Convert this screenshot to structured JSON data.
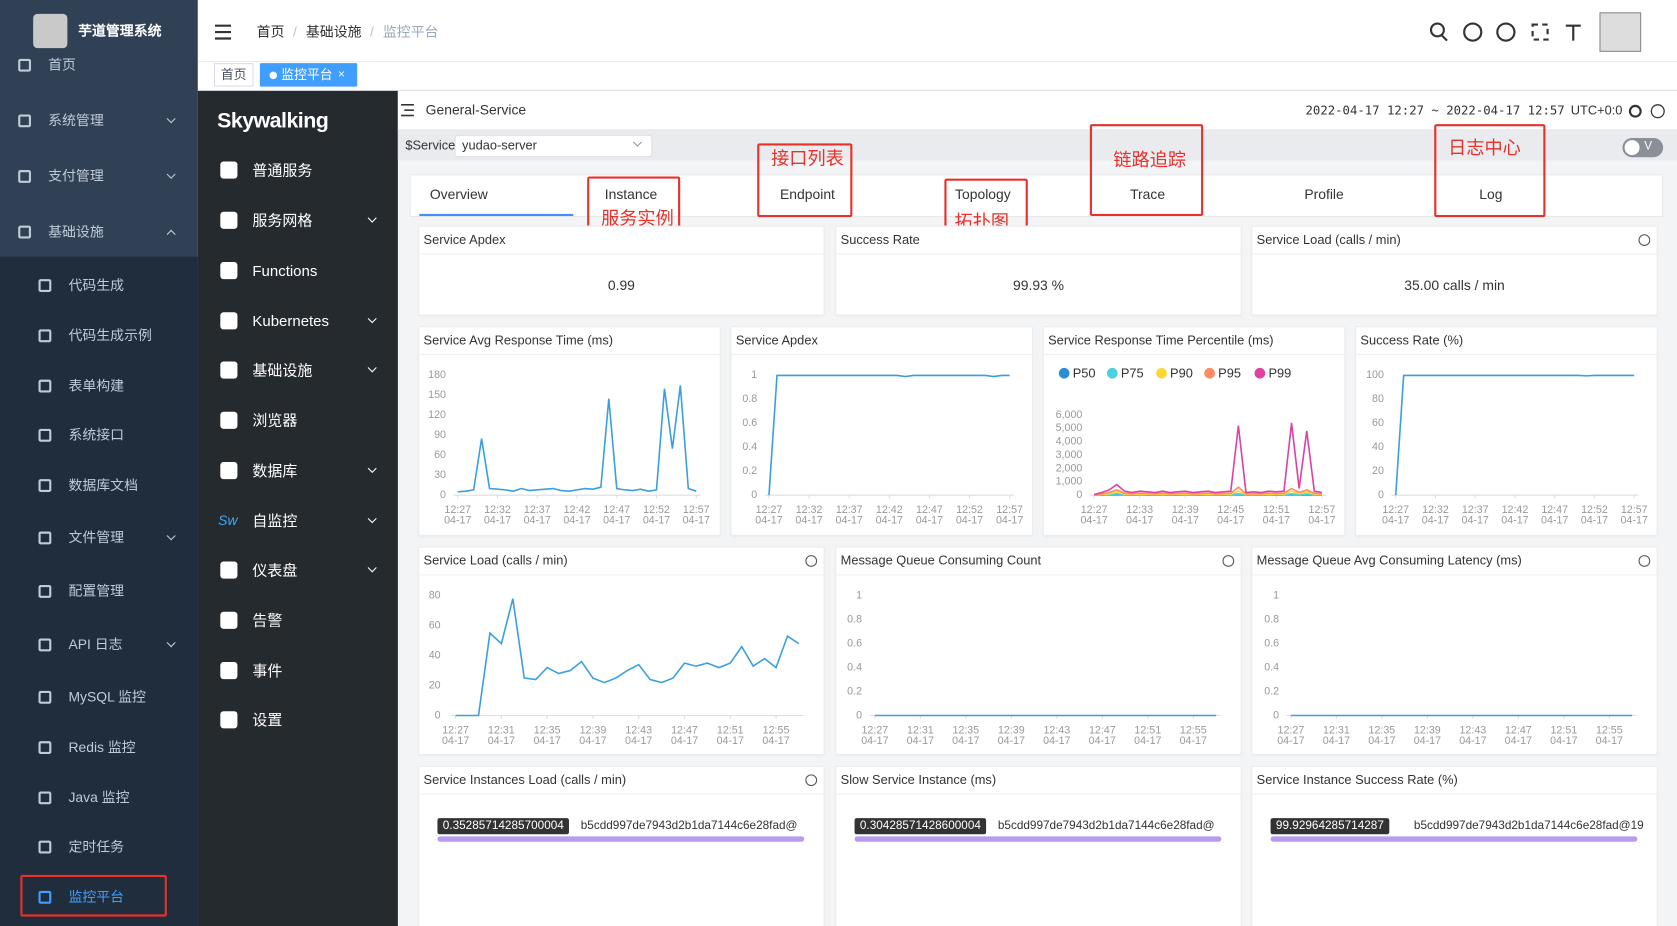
{
  "sidebar": {
    "brand": "芋道管理系统",
    "items": [
      "首页",
      "系统管理",
      "支付管理",
      "基础设施"
    ],
    "subitems": [
      "代码生成",
      "代码生成示例",
      "表单构建",
      "系统接口",
      "数据库文档",
      "文件管理",
      "配置管理",
      "API 日志",
      "MySQL 监控",
      "Redis 监控",
      "Java 监控",
      "定时任务",
      "监控平台"
    ]
  },
  "header": {
    "breadcrumb": [
      "首页",
      "基础设施",
      "监控平台"
    ],
    "separator": "/",
    "tags": [
      "首页",
      "监控平台"
    ],
    "tag_close": "×"
  },
  "skywalking": {
    "logo": "Skywalking",
    "sw_icon": "Sw",
    "menu": [
      "普通服务",
      "服务网格",
      "Functions",
      "Kubernetes",
      "基础设施",
      "浏览器",
      "数据库",
      "自监控",
      "仪表盘",
      "告警",
      "事件",
      "设置"
    ]
  },
  "dashboard": {
    "title": "General-Service",
    "time_range": "2022-04-17 12:27 ~ 2022-04-17 12:57",
    "timezone": "UTC+0:0",
    "service_label": "$Service",
    "service": "yudao-server",
    "toggle": "V",
    "tabs": [
      "Overview",
      "Instance",
      "Endpoint",
      "Topology",
      "Trace",
      "Profile",
      "Log"
    ],
    "annotations": [
      "服务实例",
      "接口列表",
      "拓扑图",
      "链路追踪",
      "日志中心"
    ],
    "cards": [
      {
        "title": "Service Apdex",
        "value": 0.99
      },
      {
        "title": "Success Rate",
        "value": 99.93,
        "value_label": "99.93 %"
      },
      {
        "title": "Service Load (calls / min)",
        "value": 35,
        "value_label": "35.00 calls / min"
      }
    ],
    "lists": [
      {
        "title": "Service Instances Load (calls / min)",
        "items": [
          {
            "value": 0.35285714285700004,
            "value_label": "0.35285714285700004",
            "name": "b5cdd997de7943d2b1da7144c6e28fad@"
          }
        ]
      },
      {
        "title": "Slow Service Instance (ms)",
        "items": [
          {
            "value": 0.30428571428600004,
            "value_label": "0.30428571428600004",
            "name": "b5cdd997de7943d2b1da7144c6e28fad@"
          }
        ]
      },
      {
        "title": "Service Instance Success Rate (%)",
        "items": [
          {
            "value": 99.92964285714287,
            "value_label": "99.92964285714287",
            "name": "b5cdd997de7943d2b1da7144c6e28fad@19"
          }
        ]
      }
    ]
  },
  "chart_data": [
    {
      "type": "line",
      "title": "Service Avg Response Time (ms)",
      "color": "#3a9fe0",
      "xlim": [
        0,
        30
      ],
      "ylim": [
        0,
        180
      ],
      "yticks": [
        0,
        30,
        60,
        90,
        120,
        150,
        180
      ],
      "xticks": [
        {
          "value": 0,
          "label": "12:27",
          "date": "04-17"
        },
        {
          "value": 5,
          "label": "12:32",
          "date": "04-17"
        },
        {
          "value": 10,
          "label": "12:37",
          "date": "04-17"
        },
        {
          "value": 15,
          "label": "12:42",
          "date": "04-17"
        },
        {
          "value": 20,
          "label": "12:47",
          "date": "04-17"
        },
        {
          "value": 25,
          "label": "12:52",
          "date": "04-17"
        },
        {
          "value": 30,
          "label": "12:57",
          "date": "04-17"
        }
      ],
      "values": [
        5,
        6,
        8,
        85,
        10,
        9,
        8,
        6,
        10,
        7,
        8,
        9,
        10,
        7,
        6,
        8,
        10,
        9,
        12,
        145,
        10,
        8,
        7,
        9,
        6,
        8,
        160,
        70,
        165,
        10,
        6
      ]
    },
    {
      "type": "line",
      "title": "Service Apdex",
      "color": "#3a9fe0",
      "xlim": [
        0,
        30
      ],
      "ylim": [
        0,
        1
      ],
      "yticks": [
        0,
        0.2,
        0.4,
        0.6,
        0.8,
        1
      ],
      "xticks": [
        {
          "value": 0,
          "label": "12:27",
          "date": "04-17"
        },
        {
          "value": 5,
          "label": "12:32",
          "date": "04-17"
        },
        {
          "value": 10,
          "label": "12:37",
          "date": "04-17"
        },
        {
          "value": 15,
          "label": "12:42",
          "date": "04-17"
        },
        {
          "value": 20,
          "label": "12:47",
          "date": "04-17"
        },
        {
          "value": 25,
          "label": "12:52",
          "date": "04-17"
        },
        {
          "value": 30,
          "label": "12:57",
          "date": "04-17"
        }
      ],
      "values": [
        0,
        1,
        1,
        1,
        1,
        1,
        1,
        1,
        1,
        1,
        1,
        1,
        1,
        1,
        1,
        1,
        1,
        0.99,
        1,
        1,
        1,
        1,
        1,
        1,
        1,
        1,
        1,
        1,
        0.99,
        1,
        1
      ]
    },
    {
      "type": "line",
      "title": "Service Response Time Percentile (ms)",
      "xlim": [
        0,
        30
      ],
      "ylim": [
        0,
        6000
      ],
      "yticks": [
        0,
        {
          "value": 1000,
          "label": "1,000"
        },
        {
          "value": 2000,
          "label": "2,000"
        },
        {
          "value": 3000,
          "label": "3,000"
        },
        {
          "value": 4000,
          "label": "4,000"
        },
        {
          "value": 5000,
          "label": "5,000"
        },
        {
          "value": 6000,
          "label": "6,000"
        }
      ],
      "xticks": [
        {
          "value": 0,
          "label": "12:27",
          "date": "04-17"
        },
        {
          "value": 6,
          "label": "12:33",
          "date": "04-17"
        },
        {
          "value": 12,
          "label": "12:39",
          "date": "04-17"
        },
        {
          "value": 18,
          "label": "12:45",
          "date": "04-17"
        },
        {
          "value": 24,
          "label": "12:51",
          "date": "04-17"
        },
        {
          "value": 30,
          "label": "12:57",
          "date": "04-17"
        }
      ],
      "series": [
        {
          "name": "P50",
          "color": "#2c8fd6",
          "values": [
            5,
            10,
            20,
            40,
            15,
            10,
            15,
            12,
            10,
            15,
            10,
            12,
            15,
            10,
            12,
            15,
            10,
            12,
            15,
            40,
            10,
            12,
            10,
            15,
            12,
            15,
            40,
            20,
            30,
            15,
            10
          ]
        },
        {
          "name": "P75",
          "color": "#4dd0e1",
          "values": [
            10,
            30,
            50,
            100,
            40,
            30,
            40,
            35,
            30,
            40,
            30,
            35,
            40,
            30,
            35,
            40,
            30,
            35,
            40,
            100,
            30,
            35,
            30,
            40,
            35,
            40,
            100,
            50,
            90,
            40,
            30
          ]
        },
        {
          "name": "P90",
          "color": "#fdd835",
          "values": [
            20,
            60,
            100,
            250,
            80,
            60,
            80,
            70,
            60,
            80,
            60,
            70,
            80,
            60,
            70,
            80,
            60,
            70,
            80,
            300,
            60,
            70,
            60,
            80,
            70,
            80,
            300,
            100,
            250,
            80,
            60
          ]
        },
        {
          "name": "P95",
          "color": "#ff8a65",
          "values": [
            30,
            100,
            200,
            400,
            150,
            100,
            150,
            120,
            100,
            150,
            100,
            120,
            150,
            100,
            120,
            150,
            100,
            120,
            150,
            600,
            100,
            120,
            100,
            150,
            120,
            150,
            500,
            200,
            400,
            150,
            100
          ]
        },
        {
          "name": "P99",
          "color": "#e040a0",
          "values": [
            50,
            200,
            400,
            800,
            300,
            200,
            300,
            250,
            200,
            300,
            200,
            250,
            300,
            200,
            250,
            300,
            200,
            250,
            300,
            5200,
            200,
            250,
            200,
            300,
            250,
            300,
            5400,
            500,
            4800,
            300,
            200
          ]
        }
      ]
    },
    {
      "type": "line",
      "title": "Success Rate (%)",
      "color": "#3a9fe0",
      "xlim": [
        0,
        30
      ],
      "ylim": [
        0,
        100
      ],
      "yticks": [
        0,
        20,
        40,
        60,
        80,
        100
      ],
      "xticks": [
        {
          "value": 0,
          "label": "12:27",
          "date": "04-17"
        },
        {
          "value": 5,
          "label": "12:32",
          "date": "04-17"
        },
        {
          "value": 10,
          "label": "12:37",
          "date": "04-17"
        },
        {
          "value": 15,
          "label": "12:42",
          "date": "04-17"
        },
        {
          "value": 20,
          "label": "12:47",
          "date": "04-17"
        },
        {
          "value": 25,
          "label": "12:52",
          "date": "04-17"
        },
        {
          "value": 30,
          "label": "12:57",
          "date": "04-17"
        }
      ],
      "values": [
        0,
        100,
        100,
        100,
        100,
        100,
        100,
        100,
        100,
        100,
        100,
        100,
        100,
        100,
        100,
        100,
        100,
        100,
        100,
        100,
        100,
        100,
        100,
        100,
        99.6,
        100,
        100,
        100,
        100,
        100,
        100
      ]
    },
    {
      "type": "line",
      "title": "Service Load (calls / min)",
      "color": "#3a9fe0",
      "xlim": [
        0,
        30
      ],
      "ylim": [
        0,
        80
      ],
      "yticks": [
        0,
        20,
        40,
        60,
        80
      ],
      "xticks": [
        {
          "value": 0,
          "label": "12:27",
          "date": "04-17"
        },
        {
          "value": 4,
          "label": "12:31",
          "date": "04-17"
        },
        {
          "value": 8,
          "label": "12:35",
          "date": "04-17"
        },
        {
          "value": 12,
          "label": "12:39",
          "date": "04-17"
        },
        {
          "value": 16,
          "label": "12:43",
          "date": "04-17"
        },
        {
          "value": 20,
          "label": "12:47",
          "date": "04-17"
        },
        {
          "value": 24,
          "label": "12:51",
          "date": "04-17"
        },
        {
          "value": 28,
          "label": "12:55",
          "date": "04-17"
        }
      ],
      "values": [
        0,
        0,
        0,
        55,
        48,
        78,
        25,
        24,
        32,
        28,
        30,
        36,
        25,
        22,
        25,
        30,
        34,
        24,
        22,
        25,
        35,
        33,
        35,
        32,
        35,
        46,
        33,
        38,
        32,
        53,
        48
      ]
    },
    {
      "type": "line",
      "title": "Message Queue Consuming Count",
      "color": "#3a9fe0",
      "xlim": [
        0,
        30
      ],
      "ylim": [
        0,
        1
      ],
      "yticks": [
        0,
        0.2,
        0.4,
        0.6,
        0.8,
        1
      ],
      "xticks": [
        {
          "value": 0,
          "label": "12:27",
          "date": "04-17"
        },
        {
          "value": 4,
          "label": "12:31",
          "date": "04-17"
        },
        {
          "value": 8,
          "label": "12:35",
          "date": "04-17"
        },
        {
          "value": 12,
          "label": "12:39",
          "date": "04-17"
        },
        {
          "value": 16,
          "label": "12:43",
          "date": "04-17"
        },
        {
          "value": 20,
          "label": "12:47",
          "date": "04-17"
        },
        {
          "value": 24,
          "label": "12:51",
          "date": "04-17"
        },
        {
          "value": 28,
          "label": "12:55",
          "date": "04-17"
        }
      ],
      "values": [
        0,
        0,
        0,
        0,
        0,
        0,
        0,
        0,
        0,
        0,
        0,
        0,
        0,
        0,
        0,
        0,
        0,
        0,
        0,
        0,
        0,
        0,
        0,
        0,
        0,
        0,
        0,
        0,
        0,
        0,
        0
      ]
    },
    {
      "type": "line",
      "title": "Message Queue Avg Consuming Latency (ms)",
      "color": "#3a9fe0",
      "xlim": [
        0,
        30
      ],
      "ylim": [
        0,
        1
      ],
      "yticks": [
        0,
        0.2,
        0.4,
        0.6,
        0.8,
        1
      ],
      "xticks": [
        {
          "value": 0,
          "label": "12:27",
          "date": "04-17"
        },
        {
          "value": 4,
          "label": "12:31",
          "date": "04-17"
        },
        {
          "value": 8,
          "label": "12:35",
          "date": "04-17"
        },
        {
          "value": 12,
          "label": "12:39",
          "date": "04-17"
        },
        {
          "value": 16,
          "label": "12:43",
          "date": "04-17"
        },
        {
          "value": 20,
          "label": "12:47",
          "date": "04-17"
        },
        {
          "value": 24,
          "label": "12:51",
          "date": "04-17"
        },
        {
          "value": 28,
          "label": "12:55",
          "date": "04-17"
        }
      ],
      "values": [
        0,
        0,
        0,
        0,
        0,
        0,
        0,
        0,
        0,
        0,
        0,
        0,
        0,
        0,
        0,
        0,
        0,
        0,
        0,
        0,
        0,
        0,
        0,
        0,
        0,
        0,
        0,
        0,
        0,
        0,
        0
      ]
    }
  ]
}
